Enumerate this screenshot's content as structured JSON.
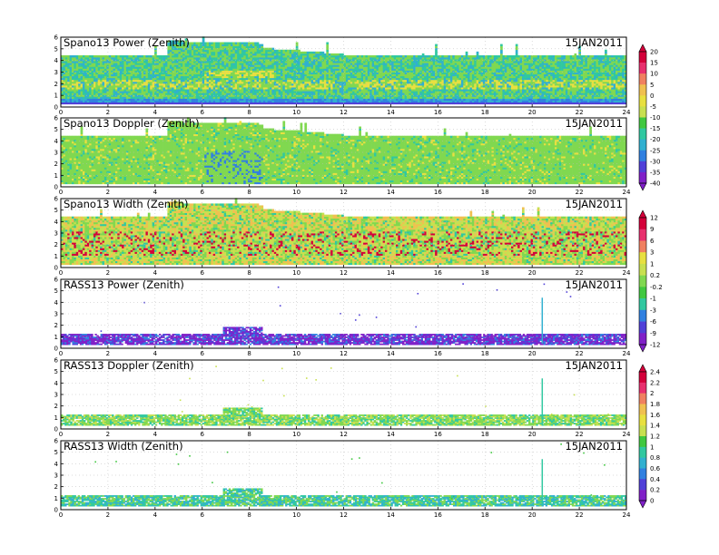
{
  "date_label": "15JAN2011",
  "chart_data": [
    {
      "type": "heatmap",
      "title": "Spano13 Power (Zenith)",
      "x": [
        0,
        2,
        4,
        6,
        8,
        10,
        12,
        14,
        16,
        18,
        20,
        22,
        24
      ],
      "xlim": [
        0,
        24
      ],
      "ylim": [
        0,
        6
      ],
      "yticks": [
        0,
        1,
        2,
        3,
        4,
        5,
        6
      ],
      "grid": true,
      "colorbar": [
        "20",
        "15",
        "10",
        "5",
        "0",
        "-5",
        "-10",
        "-15",
        "-20",
        "-25",
        "-30",
        "-35",
        "-40"
      ]
    },
    {
      "type": "heatmap",
      "title": "Spano13 Doppler (Zenith)",
      "x": [
        0,
        2,
        4,
        6,
        8,
        10,
        12,
        14,
        16,
        18,
        20,
        22,
        24
      ],
      "xlim": [
        0,
        24
      ],
      "ylim": [
        0,
        6
      ],
      "yticks": [
        0,
        1,
        2,
        3,
        4,
        5,
        6
      ],
      "grid": true
    },
    {
      "type": "heatmap",
      "title": "Spano13 Width (Zenith)",
      "x": [
        0,
        2,
        4,
        6,
        8,
        10,
        12,
        14,
        16,
        18,
        20,
        22,
        24
      ],
      "xlim": [
        0,
        24
      ],
      "ylim": [
        0,
        6
      ],
      "yticks": [
        0,
        1,
        2,
        3,
        4,
        5,
        6
      ],
      "grid": true,
      "colorbar": [
        "12",
        "9",
        "6",
        "3",
        "1",
        "0.2",
        "-0.2",
        "-1",
        "-3",
        "-6",
        "-9",
        "-12"
      ]
    },
    {
      "type": "heatmap",
      "title": "RASS13 Power (Zenith)",
      "x": [
        0,
        2,
        4,
        6,
        8,
        10,
        12,
        14,
        16,
        18,
        20,
        22,
        24
      ],
      "xlim": [
        0,
        24
      ],
      "ylim": [
        0,
        6
      ],
      "yticks": [
        0,
        1,
        2,
        3,
        4,
        5,
        6
      ],
      "grid": true
    },
    {
      "type": "heatmap",
      "title": "RASS13 Doppler (Zenith)",
      "x": [
        0,
        2,
        4,
        6,
        8,
        10,
        12,
        14,
        16,
        18,
        20,
        22,
        24
      ],
      "xlim": [
        0,
        24
      ],
      "ylim": [
        0,
        6
      ],
      "yticks": [
        0,
        1,
        2,
        3,
        4,
        5,
        6
      ],
      "grid": true,
      "colorbar": [
        "2.4",
        "2.2",
        "2",
        "1.8",
        "1.6",
        "1.4",
        "1.2",
        "1",
        "0.8",
        "0.6",
        "0.4",
        "0.2",
        "0"
      ]
    },
    {
      "type": "heatmap",
      "title": "RASS13 Width (Zenith)",
      "x": [
        0,
        2,
        4,
        6,
        8,
        10,
        12,
        14,
        16,
        18,
        20,
        22,
        24
      ],
      "xlim": [
        0,
        24
      ],
      "ylim": [
        0,
        6
      ],
      "yticks": [
        0,
        1,
        2,
        3,
        4,
        5,
        6
      ],
      "grid": true
    }
  ],
  "palette": [
    "#d4003a",
    "#e8306e",
    "#f08060",
    "#f0c050",
    "#e8e040",
    "#c8e050",
    "#80d850",
    "#40c840",
    "#30c8a0",
    "#30b0d0",
    "#3080e0",
    "#5040d8",
    "#8020c8"
  ]
}
